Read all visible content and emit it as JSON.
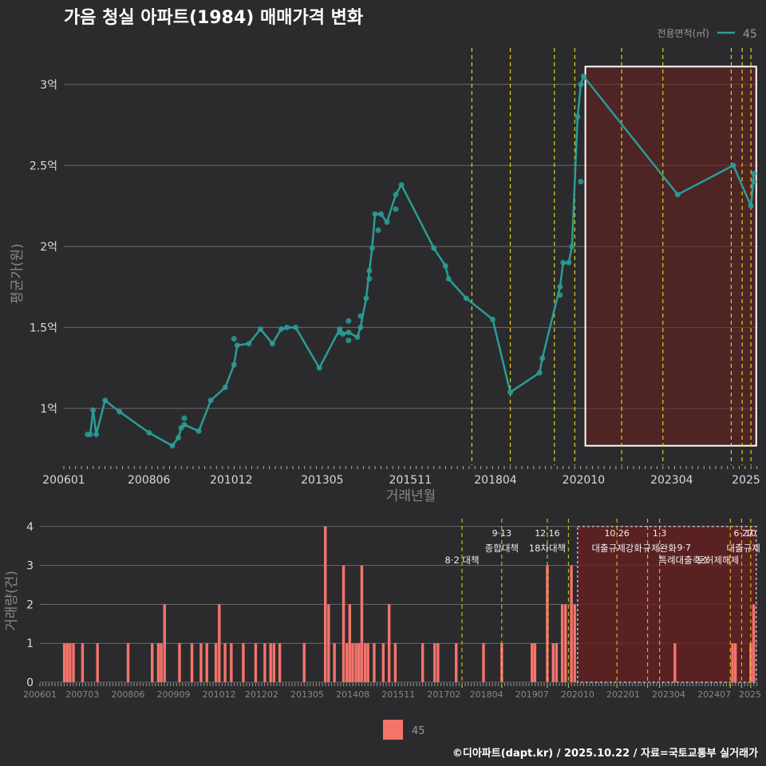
{
  "title": "가음 청실 아파트(1984) 매매가격 변화",
  "caption": "©디아파트(dapt.kr) / 2025.10.22 / 자료=국토교통부 실거래가",
  "colors": {
    "background": "#2b2b2d",
    "price_line": "#2a9d96",
    "volume_bar": "#f4736b",
    "policy_line": "#e1d21a",
    "highlight_fill": "#6b1f1f",
    "gridline": "#6a6a6a",
    "text": "#d9d9d9",
    "muted_text": "#888888"
  },
  "legend": {
    "top_title": "전용면적(㎡)",
    "top_label": "45",
    "bottom_label": "45"
  },
  "chart_data": [
    {
      "type": "line",
      "name": "price",
      "xlabel": "거래년월",
      "ylabel": "평균가(원)",
      "ylim": [
        0.65,
        3.25
      ],
      "xlim": [
        2006.0,
        2025.7
      ],
      "y_ticks": [
        {
          "v": 1.0,
          "label": "1억"
        },
        {
          "v": 1.5,
          "label": "1.5억"
        },
        {
          "v": 2.0,
          "label": "2억"
        },
        {
          "v": 2.5,
          "label": "2.5억"
        },
        {
          "v": 3.0,
          "label": "3억"
        }
      ],
      "x_ticks": [
        {
          "v": 2006.0,
          "label": "200601"
        },
        {
          "v": 2008.4167,
          "label": "200806"
        },
        {
          "v": 2010.75,
          "label": "201012"
        },
        {
          "v": 2013.3333,
          "label": "201305"
        },
        {
          "v": 2015.8333,
          "label": "201511"
        },
        {
          "v": 2018.25,
          "label": "201804"
        },
        {
          "v": 2020.75,
          "label": "202010"
        },
        {
          "v": 2023.25,
          "label": "202304"
        },
        {
          "v": 2025.5,
          "label": "2025"
        }
      ],
      "highlight": {
        "x_start": 2020.8,
        "x_end": 2025.65,
        "y_start": 0.77,
        "y_end": 3.11
      },
      "policy_lines": [
        2017.58,
        2018.67,
        2019.92,
        2020.5,
        2021.83,
        2023.0,
        2024.94,
        2025.25,
        2025.5
      ],
      "series": [
        {
          "name": "45",
          "points": [
            [
              2006.75,
              0.84
            ],
            [
              2006.83,
              0.99
            ],
            [
              2006.92,
              0.84
            ],
            [
              2007.17,
              1.05
            ],
            [
              2007.58,
              0.98
            ],
            [
              2008.42,
              0.85
            ],
            [
              2009.08,
              0.77
            ],
            [
              2009.25,
              0.82
            ],
            [
              2009.33,
              0.88
            ],
            [
              2009.42,
              0.9
            ],
            [
              2009.83,
              0.86
            ],
            [
              2010.17,
              1.05
            ],
            [
              2010.58,
              1.13
            ],
            [
              2010.83,
              1.27
            ],
            [
              2010.92,
              1.39
            ],
            [
              2011.25,
              1.4
            ],
            [
              2011.58,
              1.49
            ],
            [
              2011.92,
              1.4
            ],
            [
              2012.17,
              1.49
            ],
            [
              2012.33,
              1.5
            ],
            [
              2012.58,
              1.5
            ],
            [
              2013.25,
              1.25
            ],
            [
              2013.83,
              1.49
            ],
            [
              2013.92,
              1.46
            ],
            [
              2014.08,
              1.47
            ],
            [
              2014.33,
              1.44
            ],
            [
              2014.42,
              1.5
            ],
            [
              2014.58,
              1.68
            ],
            [
              2014.67,
              1.85
            ],
            [
              2014.75,
              1.99
            ],
            [
              2014.83,
              2.2
            ],
            [
              2015.0,
              2.2
            ],
            [
              2015.17,
              2.15
            ],
            [
              2015.42,
              2.32
            ],
            [
              2015.58,
              2.38
            ],
            [
              2016.5,
              1.99
            ],
            [
              2016.83,
              1.88
            ],
            [
              2016.92,
              1.8
            ],
            [
              2017.42,
              1.68
            ],
            [
              2018.17,
              1.55
            ],
            [
              2018.67,
              1.1
            ],
            [
              2019.5,
              1.22
            ],
            [
              2019.58,
              1.31
            ],
            [
              2020.08,
              1.75
            ],
            [
              2020.17,
              1.9
            ],
            [
              2020.33,
              1.9
            ],
            [
              2020.42,
              2.0
            ],
            [
              2020.58,
              2.8
            ],
            [
              2020.67,
              3.0
            ],
            [
              2020.75,
              3.05
            ],
            [
              2023.42,
              2.32
            ],
            [
              2025.0,
              2.5
            ],
            [
              2025.5,
              2.25
            ],
            [
              2025.58,
              2.45
            ]
          ],
          "extra_points": [
            [
              2006.67,
              0.84
            ],
            [
              2009.42,
              0.94
            ],
            [
              2010.83,
              1.43
            ],
            [
              2013.83,
              1.47
            ],
            [
              2014.08,
              1.42
            ],
            [
              2014.08,
              1.54
            ],
            [
              2014.42,
              1.57
            ],
            [
              2014.67,
              1.8
            ],
            [
              2014.92,
              2.1
            ],
            [
              2015.42,
              2.23
            ],
            [
              2020.08,
              1.7
            ],
            [
              2020.67,
              2.4
            ],
            [
              2025.58,
              2.4
            ]
          ]
        }
      ]
    },
    {
      "type": "bar",
      "name": "volume",
      "ylabel": "거래량(건)",
      "ylim": [
        0,
        4.2
      ],
      "xlim": [
        2006.0,
        2025.7
      ],
      "y_ticks": [
        {
          "v": 0,
          "label": "0"
        },
        {
          "v": 1,
          "label": "1"
        },
        {
          "v": 2,
          "label": "2"
        },
        {
          "v": 3,
          "label": "3"
        },
        {
          "v": 4,
          "label": "4"
        }
      ],
      "x_ticks": [
        {
          "v": 2006.0,
          "label": "200601"
        },
        {
          "v": 2007.1667,
          "label": "200703"
        },
        {
          "v": 2008.4167,
          "label": "200806"
        },
        {
          "v": 2009.6667,
          "label": "200909"
        },
        {
          "v": 2010.9167,
          "label": "201012"
        },
        {
          "v": 2012.0833,
          "label": "201202"
        },
        {
          "v": 2013.3333,
          "label": "201305"
        },
        {
          "v": 2014.5833,
          "label": "201408"
        },
        {
          "v": 2015.8333,
          "label": "201511"
        },
        {
          "v": 2017.0833,
          "label": "201702"
        },
        {
          "v": 2018.25,
          "label": "201804"
        },
        {
          "v": 2019.5,
          "label": "201907"
        },
        {
          "v": 2020.75,
          "label": "202010"
        },
        {
          "v": 2022.0,
          "label": "202201"
        },
        {
          "v": 2023.25,
          "label": "202304"
        },
        {
          "v": 2024.5,
          "label": "202407"
        },
        {
          "v": 2025.5,
          "label": "2025"
        }
      ],
      "highlight": {
        "x_start": 2020.75,
        "x_end": 2025.65,
        "y_start": 0,
        "y_end": 4.0
      },
      "policy_lines": [
        2017.58,
        2018.67,
        2019.92,
        2020.5,
        2021.83,
        2022.67,
        2023.0,
        2024.94,
        2025.25,
        2025.5
      ],
      "annotations": [
        {
          "date": "",
          "text": "8·2 대책",
          "x": 2017.58,
          "row": 1
        },
        {
          "date": "9·13",
          "text": "종합대책",
          "x": 2018.67,
          "row": 0
        },
        {
          "date": "12·16",
          "text": "18차대책",
          "x": 2019.92,
          "row": 0
        },
        {
          "date": "10·26",
          "text": "대출규제강화",
          "x": 2021.83,
          "row": 0
        },
        {
          "date": "1·3",
          "text": "규제완화",
          "x": 2023.0,
          "row": 0
        },
        {
          "date": "9·7",
          "text": "특례대출축소",
          "x": 2023.67,
          "row": 1
        },
        {
          "date": "",
          "text": "토허제해제",
          "x": 2024.6,
          "row": 1
        },
        {
          "date": "6·27",
          "text": "대출규제",
          "x": 2025.3,
          "row": 0
        },
        {
          "date": "10",
          "text": "",
          "x": 2025.5,
          "row": 0
        }
      ],
      "bars": [
        [
          2006.67,
          1
        ],
        [
          2006.75,
          1
        ],
        [
          2006.83,
          1
        ],
        [
          2006.92,
          1
        ],
        [
          2007.17,
          1
        ],
        [
          2007.58,
          1
        ],
        [
          2008.42,
          1
        ],
        [
          2009.08,
          1
        ],
        [
          2009.25,
          1
        ],
        [
          2009.33,
          1
        ],
        [
          2009.42,
          2
        ],
        [
          2009.83,
          1
        ],
        [
          2010.17,
          1
        ],
        [
          2010.42,
          1
        ],
        [
          2010.58,
          1
        ],
        [
          2010.83,
          1
        ],
        [
          2010.92,
          2
        ],
        [
          2011.08,
          1
        ],
        [
          2011.25,
          1
        ],
        [
          2011.58,
          1
        ],
        [
          2011.92,
          1
        ],
        [
          2012.17,
          1
        ],
        [
          2012.33,
          1
        ],
        [
          2012.42,
          1
        ],
        [
          2012.58,
          1
        ],
        [
          2013.25,
          1
        ],
        [
          2013.83,
          4
        ],
        [
          2013.92,
          2
        ],
        [
          2014.08,
          1
        ],
        [
          2014.33,
          3
        ],
        [
          2014.42,
          1
        ],
        [
          2014.5,
          2
        ],
        [
          2014.58,
          1
        ],
        [
          2014.67,
          1
        ],
        [
          2014.75,
          1
        ],
        [
          2014.83,
          3
        ],
        [
          2014.92,
          1
        ],
        [
          2015.0,
          1
        ],
        [
          2015.17,
          1
        ],
        [
          2015.42,
          1
        ],
        [
          2015.58,
          2
        ],
        [
          2015.75,
          1
        ],
        [
          2016.5,
          1
        ],
        [
          2016.83,
          1
        ],
        [
          2016.92,
          1
        ],
        [
          2017.42,
          1
        ],
        [
          2018.17,
          1
        ],
        [
          2018.67,
          1
        ],
        [
          2019.5,
          1
        ],
        [
          2019.58,
          1
        ],
        [
          2019.92,
          3
        ],
        [
          2020.08,
          1
        ],
        [
          2020.17,
          1
        ],
        [
          2020.33,
          2
        ],
        [
          2020.42,
          2
        ],
        [
          2020.58,
          3
        ],
        [
          2020.67,
          2
        ],
        [
          2023.42,
          1
        ],
        [
          2025.0,
          1
        ],
        [
          2025.08,
          1
        ],
        [
          2025.5,
          1
        ],
        [
          2025.58,
          2
        ]
      ]
    }
  ]
}
